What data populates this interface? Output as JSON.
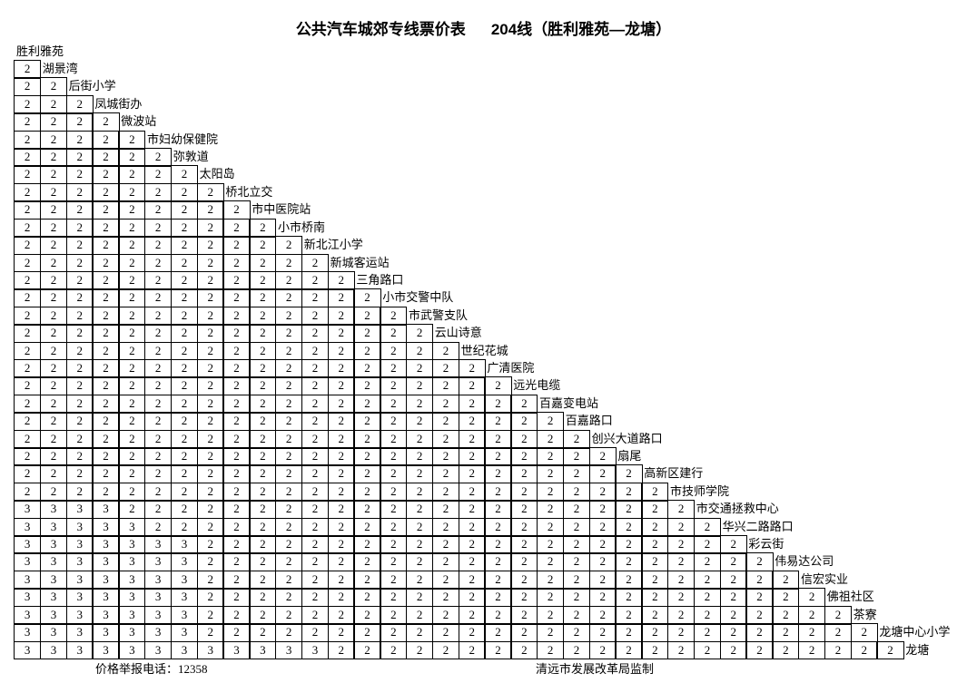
{
  "title": "公共汽车城郊专线票价表",
  "route": "204线（胜利雅苑—龙塘）",
  "stations": [
    "胜利雅苑",
    "湖景湾",
    "后街小学",
    "凤城街办",
    "微波站",
    "市妇幼保健院",
    "弥敦道",
    "太阳岛",
    "桥北立交",
    "市中医院站",
    "小市桥南",
    "新北江小学",
    "新城客运站",
    "三角路口",
    "小市交警中队",
    "市武警支队",
    "云山诗意",
    "世纪花城",
    "广清医院",
    "远光电缆",
    "百嘉变电站",
    "百嘉路口",
    "创兴大道路口",
    "扇尾",
    "高新区建行",
    "市技师学院",
    "市交通拯救中心",
    "华兴二路路口",
    "彩云街",
    "伟易达公司",
    "信宏实业",
    "佛祖社区",
    "茶寮",
    "龙塘中心小学",
    "龙塘"
  ],
  "fare_rows": [
    "2",
    "22",
    "222",
    "2222",
    "22222",
    "222222",
    "2222222",
    "22222222",
    "222222222",
    "2222222222",
    "22222222222",
    "222222222222",
    "2222222222222",
    "22222222222222",
    "222222222222222",
    "2222222222222222",
    "22222222222222222",
    "222222222222222222",
    "2222222222222222222",
    "22222222222222222222",
    "222222222222222222222",
    "2222222222222222222222",
    "22222222222222222222222",
    "222222222222222222222222",
    "2222222222222222222222222",
    "33332222222222222222222222",
    "333332222222222222222222222",
    "3333333222222222222222222222",
    "33333332222222222222222222222",
    "333333322222222222222222222222",
    "3333333222222222222222222222222",
    "33333332222222222222222222222222",
    "333333322222222222222222222222222",
    "3333333333332222222222222222222222"
  ],
  "footer": {
    "hotline": "价格举报电话：12358",
    "supervisor": "清远市发展改革局监制"
  }
}
